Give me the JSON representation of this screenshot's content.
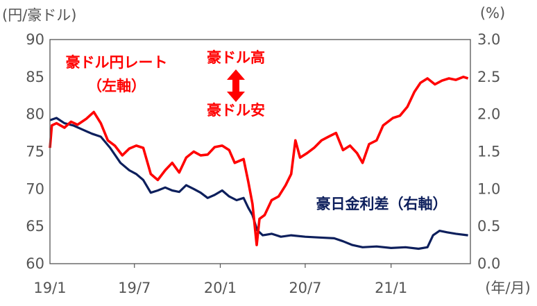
{
  "chart_data": {
    "type": "line",
    "units": {
      "left": "(円/豪ドル)",
      "right": "(%)",
      "x": "(年/月)"
    },
    "x_ticks": [
      "19/1",
      "19/7",
      "20/1",
      "20/7",
      "21/1"
    ],
    "y_left": {
      "range": [
        60,
        90
      ],
      "ticks": [
        "60",
        "65",
        "70",
        "75",
        "80",
        "85",
        "90"
      ]
    },
    "y_right": {
      "range": [
        0.0,
        3.0
      ],
      "ticks": [
        "0.0",
        "0.5",
        "1.0",
        "1.5",
        "2.0",
        "2.5",
        "3.0"
      ]
    },
    "annotations": {
      "rate_label_line1": "豪ドル円レート",
      "rate_label_line2": "（左軸）",
      "high_label": "豪ドル高",
      "low_label": "豪ドル安",
      "spread_label": "豪日金利差（右軸）"
    },
    "colors": {
      "rate": "#ff0000",
      "spread": "#0d1f5c",
      "axis": "#555555"
    },
    "series": [
      {
        "axis": "left",
        "points": [
          [
            "2019-01-01",
            75.5
          ],
          [
            "2019-01-05",
            78.5
          ],
          [
            "2019-01-15",
            78.8
          ],
          [
            "2019-02-01",
            78.2
          ],
          [
            "2019-02-15",
            79.0
          ],
          [
            "2019-03-01",
            78.6
          ],
          [
            "2019-03-20",
            79.4
          ],
          [
            "2019-04-05",
            80.3
          ],
          [
            "2019-04-20",
            78.8
          ],
          [
            "2019-05-05",
            76.5
          ],
          [
            "2019-05-20",
            75.8
          ],
          [
            "2019-06-05",
            74.5
          ],
          [
            "2019-06-20",
            75.4
          ],
          [
            "2019-07-05",
            75.8
          ],
          [
            "2019-07-20",
            75.5
          ],
          [
            "2019-08-05",
            72.0
          ],
          [
            "2019-08-20",
            71.2
          ],
          [
            "2019-09-05",
            72.5
          ],
          [
            "2019-09-20",
            73.5
          ],
          [
            "2019-10-05",
            72.2
          ],
          [
            "2019-10-20",
            74.2
          ],
          [
            "2019-11-05",
            75.0
          ],
          [
            "2019-11-20",
            74.5
          ],
          [
            "2019-12-05",
            74.6
          ],
          [
            "2019-12-20",
            75.6
          ],
          [
            "2020-01-05",
            75.8
          ],
          [
            "2020-01-20",
            75.2
          ],
          [
            "2020-02-01",
            73.5
          ],
          [
            "2020-02-20",
            74.0
          ],
          [
            "2020-03-01",
            71.0
          ],
          [
            "2020-03-10",
            68.0
          ],
          [
            "2020-03-19",
            62.5
          ],
          [
            "2020-03-25",
            66.0
          ],
          [
            "2020-04-05",
            66.5
          ],
          [
            "2020-04-20",
            68.5
          ],
          [
            "2020-05-05",
            69.0
          ],
          [
            "2020-05-20",
            70.5
          ],
          [
            "2020-06-01",
            72.0
          ],
          [
            "2020-06-10",
            76.5
          ],
          [
            "2020-06-20",
            74.2
          ],
          [
            "2020-07-05",
            74.8
          ],
          [
            "2020-07-20",
            75.5
          ],
          [
            "2020-08-05",
            76.5
          ],
          [
            "2020-08-20",
            77.0
          ],
          [
            "2020-09-05",
            77.5
          ],
          [
            "2020-09-20",
            75.2
          ],
          [
            "2020-10-05",
            75.8
          ],
          [
            "2020-10-20",
            74.8
          ],
          [
            "2020-11-01",
            73.5
          ],
          [
            "2020-11-15",
            76.0
          ],
          [
            "2020-12-01",
            76.5
          ],
          [
            "2020-12-15",
            78.5
          ],
          [
            "2021-01-05",
            79.5
          ],
          [
            "2021-01-20",
            79.8
          ],
          [
            "2021-02-05",
            81.0
          ],
          [
            "2021-02-20",
            83.0
          ],
          [
            "2021-03-05",
            84.2
          ],
          [
            "2021-03-20",
            84.8
          ],
          [
            "2021-04-05",
            84.0
          ],
          [
            "2021-04-20",
            84.5
          ],
          [
            "2021-05-05",
            84.8
          ],
          [
            "2021-05-20",
            84.6
          ],
          [
            "2021-06-05",
            85.0
          ],
          [
            "2021-06-15",
            84.8
          ]
        ]
      },
      {
        "axis": "right",
        "points": [
          [
            "2019-01-01",
            1.92
          ],
          [
            "2019-01-15",
            1.95
          ],
          [
            "2019-02-01",
            1.88
          ],
          [
            "2019-02-20",
            1.85
          ],
          [
            "2019-03-10",
            1.8
          ],
          [
            "2019-04-01",
            1.74
          ],
          [
            "2019-04-20",
            1.7
          ],
          [
            "2019-05-10",
            1.55
          ],
          [
            "2019-06-01",
            1.35
          ],
          [
            "2019-06-20",
            1.25
          ],
          [
            "2019-07-05",
            1.2
          ],
          [
            "2019-07-20",
            1.12
          ],
          [
            "2019-08-05",
            0.95
          ],
          [
            "2019-08-20",
            0.98
          ],
          [
            "2019-09-05",
            1.02
          ],
          [
            "2019-09-20",
            0.98
          ],
          [
            "2019-10-05",
            0.96
          ],
          [
            "2019-10-20",
            1.05
          ],
          [
            "2019-11-05",
            1.0
          ],
          [
            "2019-11-20",
            0.95
          ],
          [
            "2019-12-05",
            0.88
          ],
          [
            "2019-12-20",
            0.92
          ],
          [
            "2020-01-05",
            0.98
          ],
          [
            "2020-01-20",
            0.9
          ],
          [
            "2020-02-05",
            0.85
          ],
          [
            "2020-02-20",
            0.88
          ],
          [
            "2020-03-01",
            0.75
          ],
          [
            "2020-03-10",
            0.65
          ],
          [
            "2020-03-20",
            0.45
          ],
          [
            "2020-04-01",
            0.38
          ],
          [
            "2020-04-20",
            0.4
          ],
          [
            "2020-05-10",
            0.36
          ],
          [
            "2020-06-01",
            0.38
          ],
          [
            "2020-07-01",
            0.36
          ],
          [
            "2020-08-01",
            0.35
          ],
          [
            "2020-09-01",
            0.34
          ],
          [
            "2020-09-20",
            0.3
          ],
          [
            "2020-10-10",
            0.25
          ],
          [
            "2020-11-01",
            0.22
          ],
          [
            "2020-12-01",
            0.23
          ],
          [
            "2021-01-01",
            0.21
          ],
          [
            "2021-02-01",
            0.22
          ],
          [
            "2021-03-01",
            0.2
          ],
          [
            "2021-03-20",
            0.22
          ],
          [
            "2021-04-01",
            0.38
          ],
          [
            "2021-04-15",
            0.44
          ],
          [
            "2021-05-01",
            0.42
          ],
          [
            "2021-05-20",
            0.4
          ],
          [
            "2021-06-15",
            0.38
          ]
        ]
      }
    ]
  }
}
